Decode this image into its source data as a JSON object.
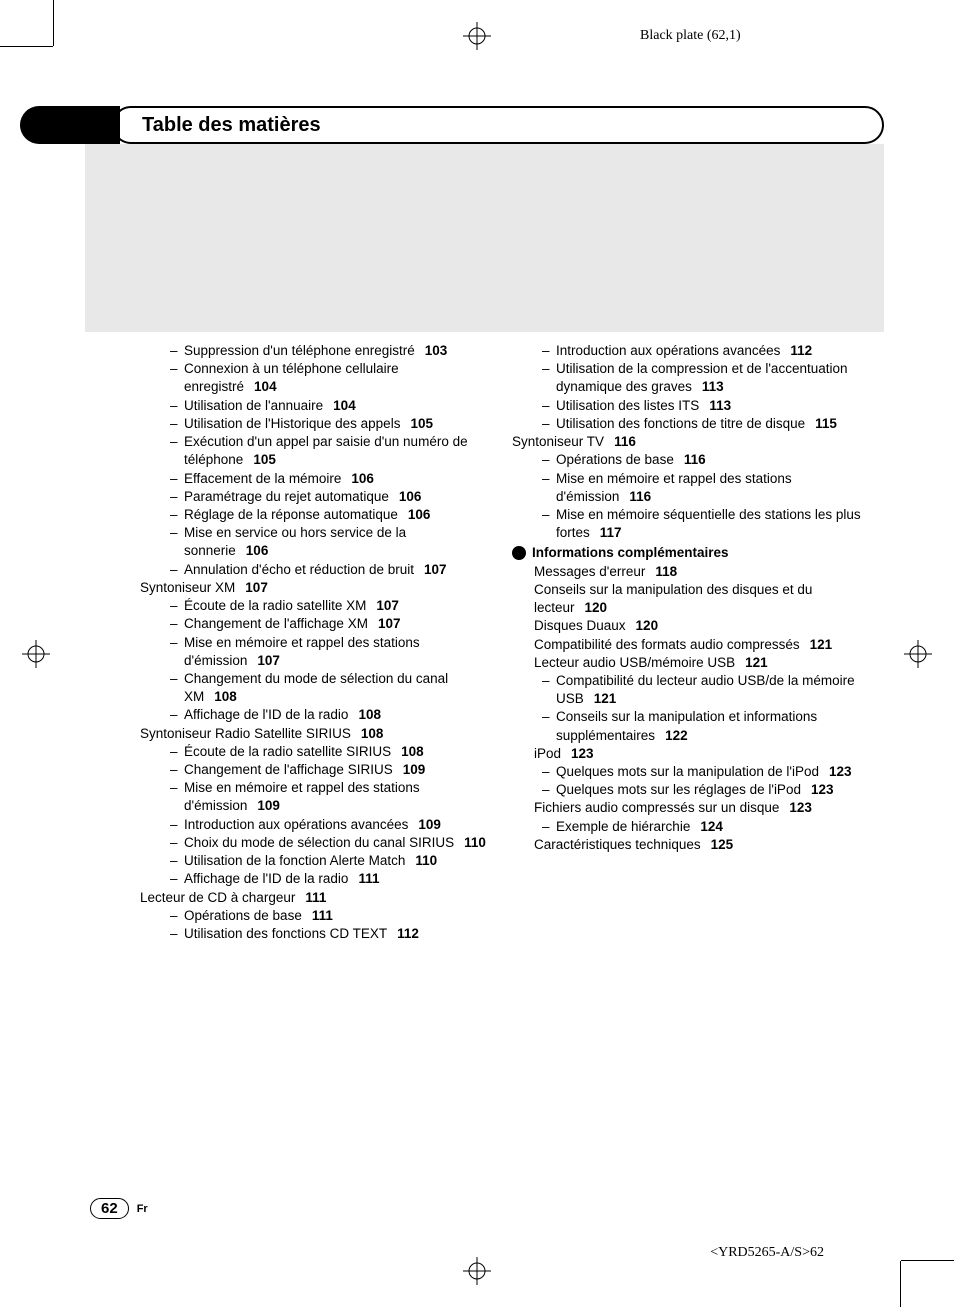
{
  "plate_label": "Black plate (62,1)",
  "header_title": "Table des matières",
  "page_number": "62",
  "language_code": "Fr",
  "footer_code": "<YRD5265-A/S>62",
  "left_col": [
    {
      "cls": "sub",
      "text": "Suppression d'un téléphone enregistré",
      "pg": "103"
    },
    {
      "cls": "sub",
      "text": "Connexion à un téléphone cellulaire enregistré",
      "pg": "104"
    },
    {
      "cls": "sub",
      "text": "Utilisation de l'annuaire",
      "pg": "104"
    },
    {
      "cls": "sub",
      "text": "Utilisation de l'Historique des appels",
      "pg": "105"
    },
    {
      "cls": "sub",
      "text": "Exécution d'un appel par saisie d'un numéro de téléphone",
      "pg": "105"
    },
    {
      "cls": "sub",
      "text": "Effacement de la mémoire",
      "pg": "106"
    },
    {
      "cls": "sub",
      "text": "Paramétrage du rejet automatique",
      "pg": "106"
    },
    {
      "cls": "sub",
      "text": "Réglage de la réponse automatique",
      "pg": "106"
    },
    {
      "cls": "sub",
      "text": "Mise en service ou hors service de la sonnerie",
      "pg": "106"
    },
    {
      "cls": "sub",
      "text": "Annulation d'écho et réduction de bruit",
      "pg": "107"
    },
    {
      "cls": "entry",
      "text": "Syntoniseur XM",
      "pg": "107",
      "pad0": true
    },
    {
      "cls": "sub",
      "text": "Écoute de la radio satellite XM",
      "pg": "107"
    },
    {
      "cls": "sub",
      "text": "Changement de l'affichage XM",
      "pg": "107"
    },
    {
      "cls": "sub",
      "text": "Mise en mémoire et rappel des stations d'émission",
      "pg": "107"
    },
    {
      "cls": "sub",
      "text": "Changement du mode de sélection du canal XM",
      "pg": "108"
    },
    {
      "cls": "sub",
      "text": "Affichage de l'ID de la radio",
      "pg": "108"
    },
    {
      "cls": "entry",
      "text": "Syntoniseur Radio Satellite SIRIUS",
      "pg": "108",
      "pad0": true
    },
    {
      "cls": "sub",
      "text": "Écoute de la radio satellite SIRIUS",
      "pg": "108"
    },
    {
      "cls": "sub",
      "text": "Changement de l'affichage SIRIUS",
      "pg": "109"
    },
    {
      "cls": "sub",
      "text": "Mise en mémoire et rappel des stations d'émission",
      "pg": "109"
    },
    {
      "cls": "sub",
      "text": "Introduction aux opérations avancées",
      "pg": "109"
    },
    {
      "cls": "sub",
      "text": "Choix du mode de sélection du canal SIRIUS",
      "pg": "110"
    },
    {
      "cls": "sub",
      "text": "Utilisation de la fonction Alerte Match",
      "pg": "110"
    },
    {
      "cls": "sub",
      "text": "Affichage de l'ID de la radio",
      "pg": "111"
    },
    {
      "cls": "entry",
      "text": "Lecteur de CD à chargeur",
      "pg": "111",
      "pad0": true
    },
    {
      "cls": "sub",
      "text": "Opérations de base",
      "pg": "111"
    },
    {
      "cls": "sub",
      "text": "Utilisation des fonctions CD TEXT",
      "pg": "112"
    }
  ],
  "right_col": [
    {
      "cls": "sub",
      "text": "Introduction aux opérations avancées",
      "pg": "112"
    },
    {
      "cls": "sub",
      "text": "Utilisation de la compression et de l'accentuation dynamique des graves",
      "pg": "113"
    },
    {
      "cls": "sub",
      "text": "Utilisation des listes ITS",
      "pg": "113"
    },
    {
      "cls": "sub",
      "text": "Utilisation des fonctions de titre de disque",
      "pg": "115"
    },
    {
      "cls": "entry",
      "text": "Syntoniseur TV",
      "pg": "116",
      "pad0": true
    },
    {
      "cls": "sub",
      "text": "Opérations de base",
      "pg": "116"
    },
    {
      "cls": "sub",
      "text": "Mise en mémoire et rappel des stations d'émission",
      "pg": "116"
    },
    {
      "cls": "sub",
      "text": "Mise en mémoire séquentielle des stations les plus fortes",
      "pg": "117"
    },
    {
      "cls": "bullet",
      "text": "Informations complémentaires"
    },
    {
      "cls": "entry",
      "text": "Messages d'erreur",
      "pg": "118"
    },
    {
      "cls": "entry",
      "text": "Conseils sur la manipulation des disques et du lecteur",
      "pg": "120"
    },
    {
      "cls": "entry",
      "text": "Disques Duaux",
      "pg": "120"
    },
    {
      "cls": "entry",
      "text": "Compatibilité des formats audio compressés",
      "pg": "121"
    },
    {
      "cls": "entry",
      "text": "Lecteur audio USB/mémoire USB",
      "pg": "121"
    },
    {
      "cls": "sub",
      "text": "Compatibilité du lecteur audio USB/de la mémoire USB",
      "pg": "121"
    },
    {
      "cls": "sub",
      "text": "Conseils sur la manipulation et informations supplémentaires",
      "pg": "122"
    },
    {
      "cls": "entry",
      "text": "iPod",
      "pg": "123"
    },
    {
      "cls": "sub",
      "text": "Quelques mots sur la manipulation de l'iPod",
      "pg": "123"
    },
    {
      "cls": "sub",
      "text": "Quelques mots sur les réglages de l'iPod",
      "pg": "123"
    },
    {
      "cls": "entry",
      "text": "Fichiers audio compressés sur un disque",
      "pg": "123"
    },
    {
      "cls": "sub",
      "text": "Exemple de hiérarchie",
      "pg": "124"
    },
    {
      "cls": "entry",
      "text": "Caractéristiques techniques",
      "pg": "125"
    }
  ]
}
